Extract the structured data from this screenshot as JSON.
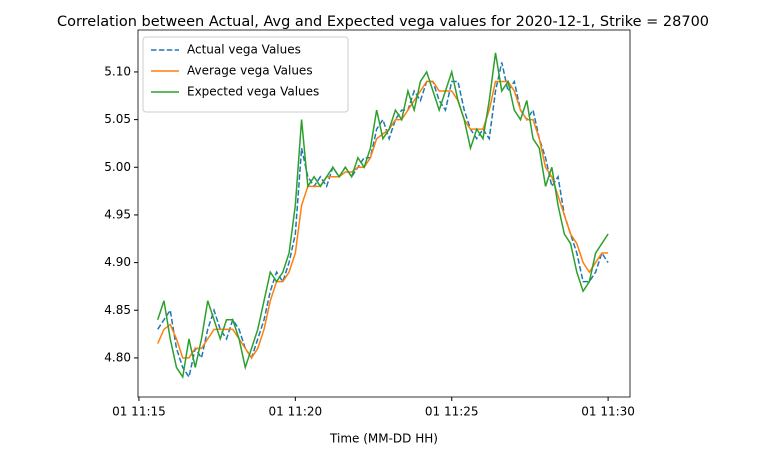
{
  "chart_data": {
    "type": "line",
    "title": "Correlation between Actual, Avg and Expected vega values for 2020-12-1, Strike = 28700",
    "x_label": "Time (MM-DD HH)",
    "x": [
      15.6,
      15.8,
      16.0,
      16.2,
      16.4,
      16.6,
      16.8,
      17.0,
      17.2,
      17.4,
      17.6,
      17.8,
      18.0,
      18.2,
      18.4,
      18.6,
      18.8,
      19.0,
      19.2,
      19.4,
      19.6,
      19.8,
      20.0,
      20.2,
      20.4,
      20.6,
      20.8,
      21.0,
      21.2,
      21.4,
      21.6,
      21.8,
      22.0,
      22.2,
      22.4,
      22.6,
      22.8,
      23.0,
      23.2,
      23.4,
      23.6,
      23.8,
      24.0,
      24.2,
      24.4,
      24.6,
      24.8,
      25.0,
      25.2,
      25.4,
      25.6,
      25.8,
      26.0,
      26.2,
      26.4,
      26.6,
      26.8,
      27.0,
      27.2,
      27.4,
      27.6,
      27.8,
      28.0,
      28.2,
      28.4,
      28.6,
      28.8,
      29.0,
      29.2,
      29.4,
      29.6,
      29.8,
      30.0
    ],
    "series": [
      {
        "name": "Actual vega Values",
        "color": "#1f77b4",
        "linestyle": "dashed",
        "values": [
          4.83,
          4.84,
          4.85,
          4.81,
          4.79,
          4.78,
          4.81,
          4.8,
          4.83,
          4.85,
          4.83,
          4.82,
          4.84,
          4.83,
          4.81,
          4.8,
          4.82,
          4.84,
          4.87,
          4.89,
          4.88,
          4.9,
          4.93,
          5.02,
          4.99,
          4.98,
          4.99,
          4.98,
          5.0,
          4.99,
          5.0,
          4.99,
          5.0,
          5.01,
          5.01,
          5.04,
          5.05,
          5.03,
          5.05,
          5.06,
          5.06,
          5.08,
          5.07,
          5.09,
          5.09,
          5.07,
          5.06,
          5.09,
          5.09,
          5.06,
          5.04,
          5.03,
          5.04,
          5.03,
          5.08,
          5.11,
          5.08,
          5.09,
          5.06,
          5.05,
          5.06,
          5.03,
          5.01,
          4.98,
          4.99,
          4.95,
          4.93,
          4.91,
          4.88,
          4.88,
          4.89,
          4.91,
          4.9
        ]
      },
      {
        "name": "Average vega Values",
        "color": "#ff7f0e",
        "linestyle": "solid",
        "values": [
          4.815,
          4.83,
          4.835,
          4.82,
          4.8,
          4.8,
          4.81,
          4.81,
          4.82,
          4.83,
          4.83,
          4.83,
          4.83,
          4.82,
          4.81,
          4.8,
          4.81,
          4.83,
          4.86,
          4.88,
          4.88,
          4.89,
          4.91,
          4.96,
          4.98,
          4.98,
          4.98,
          4.99,
          4.99,
          4.99,
          4.995,
          4.995,
          5.0,
          5.0,
          5.01,
          5.03,
          5.035,
          5.04,
          5.05,
          5.05,
          5.06,
          5.07,
          5.08,
          5.09,
          5.09,
          5.08,
          5.08,
          5.08,
          5.07,
          5.05,
          5.04,
          5.04,
          5.04,
          5.06,
          5.09,
          5.09,
          5.09,
          5.08,
          5.06,
          5.05,
          5.05,
          5.03,
          5.0,
          4.99,
          4.97,
          4.95,
          4.93,
          4.92,
          4.9,
          4.89,
          4.9,
          4.91,
          4.91
        ]
      },
      {
        "name": "Expected vega Values",
        "color": "#2ca02c",
        "linestyle": "solid",
        "values": [
          4.84,
          4.86,
          4.82,
          4.79,
          4.78,
          4.82,
          4.79,
          4.82,
          4.86,
          4.84,
          4.82,
          4.84,
          4.84,
          4.82,
          4.79,
          4.81,
          4.83,
          4.86,
          4.89,
          4.88,
          4.89,
          4.91,
          4.96,
          5.05,
          4.98,
          4.99,
          4.98,
          4.99,
          5.0,
          4.99,
          5.0,
          4.99,
          5.01,
          5.0,
          5.02,
          5.06,
          5.03,
          5.04,
          5.06,
          5.05,
          5.08,
          5.06,
          5.09,
          5.1,
          5.08,
          5.06,
          5.08,
          5.1,
          5.07,
          5.05,
          5.02,
          5.04,
          5.03,
          5.07,
          5.12,
          5.08,
          5.09,
          5.06,
          5.05,
          5.07,
          5.03,
          5.02,
          4.98,
          5.0,
          4.96,
          4.93,
          4.92,
          4.89,
          4.87,
          4.88,
          4.91,
          4.92,
          4.93
        ]
      }
    ],
    "xlim": [
      14.97,
      30.7
    ],
    "xticks": [
      {
        "value": 15,
        "label": "01 11:15"
      },
      {
        "value": 20,
        "label": "01 11:20"
      },
      {
        "value": 25,
        "label": "01 11:25"
      },
      {
        "value": 30,
        "label": "01 11:30"
      }
    ],
    "ylim": [
      4.759,
      5.144
    ],
    "yticks": [
      {
        "value": 4.8,
        "label": "4.80"
      },
      {
        "value": 4.85,
        "label": "4.85"
      },
      {
        "value": 4.9,
        "label": "4.90"
      },
      {
        "value": 4.95,
        "label": "4.95"
      },
      {
        "value": 5.0,
        "label": "5.00"
      },
      {
        "value": 5.05,
        "label": "5.05"
      },
      {
        "value": 5.1,
        "label": "5.10"
      }
    ],
    "legend": "upper left",
    "grid": false
  }
}
